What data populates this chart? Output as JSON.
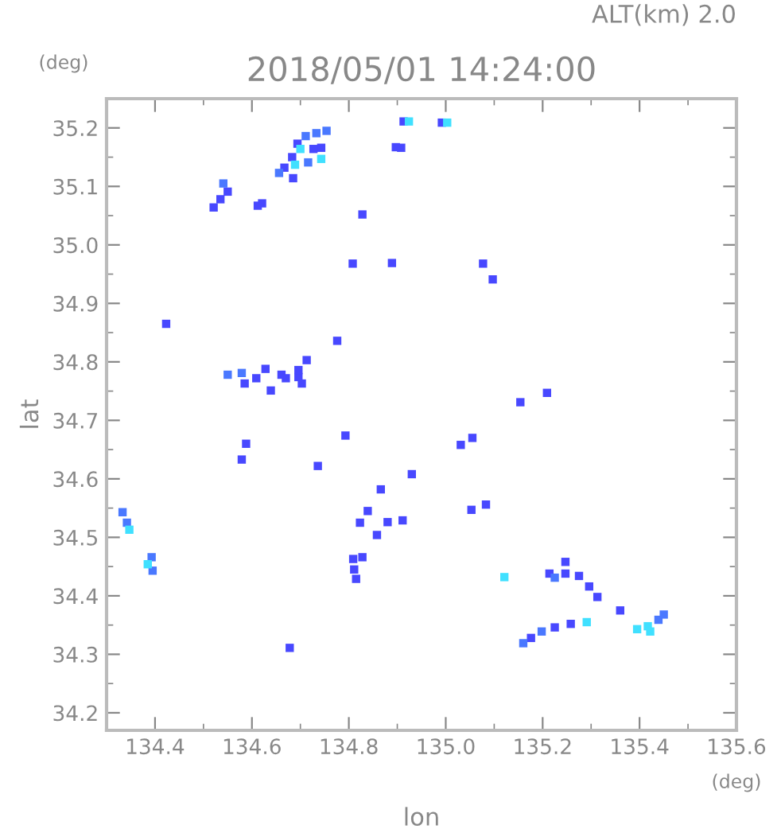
{
  "chart_data": {
    "type": "scatter",
    "title": "2018/05/01 14:24:00",
    "subtitle": "ALT(km) 2.0",
    "xlabel": "lon",
    "ylabel": "lat",
    "annotations": [
      "(deg)",
      "(deg)"
    ],
    "marker": "square",
    "grid": false,
    "legend": false,
    "xlim": [
      134.3,
      135.6
    ],
    "ylim": [
      34.17,
      35.25
    ],
    "xticks": [
      {
        "value": 134.3,
        "label": null
      },
      134.4,
      {
        "value": 134.5,
        "label": null
      },
      134.6,
      {
        "value": 134.7,
        "label": null
      },
      134.8,
      {
        "value": 134.9,
        "label": null
      },
      {
        "value": 135.0,
        "label": "135.0"
      },
      {
        "value": 135.1,
        "label": null
      },
      135.2,
      {
        "value": 135.3,
        "label": null
      },
      135.4,
      {
        "value": 135.5,
        "label": null
      },
      135.6
    ],
    "yticks": [
      34.2,
      {
        "value": 34.25,
        "label": null
      },
      34.3,
      {
        "value": 34.35,
        "label": null
      },
      34.4,
      {
        "value": 34.45,
        "label": null
      },
      34.5,
      {
        "value": 34.55,
        "label": null
      },
      34.6,
      {
        "value": 34.65,
        "label": null
      },
      34.7,
      {
        "value": 34.75,
        "label": null
      },
      34.8,
      {
        "value": 34.85,
        "label": null
      },
      34.9,
      {
        "value": 34.95,
        "label": null
      },
      {
        "value": 35.0,
        "label": "35.0"
      },
      {
        "value": 35.05,
        "label": null
      },
      35.1,
      {
        "value": 35.15,
        "label": null
      },
      35.2
    ],
    "series": [
      {
        "color": "#4848ff",
        "x": [
          134.913,
          134.992,
          134.694,
          134.683,
          134.667,
          134.743,
          134.727,
          134.685,
          134.908,
          134.897,
          134.55,
          134.535,
          134.521,
          134.612,
          134.621,
          134.828,
          134.808,
          134.889,
          134.423,
          134.776,
          134.713,
          134.609,
          134.628,
          134.661,
          134.67,
          134.696,
          134.696,
          134.703,
          134.585,
          134.639,
          135.077,
          135.097,
          135.209,
          134.588,
          134.579,
          134.793,
          134.736,
          134.93,
          134.866,
          134.839,
          134.823,
          134.88,
          134.911,
          134.858,
          134.809,
          134.828,
          134.811,
          134.815,
          134.678,
          135.154,
          135.031,
          135.055,
          135.053,
          135.083,
          135.214,
          135.247,
          135.247,
          135.275,
          135.296,
          135.313,
          135.36,
          135.176,
          135.225,
          135.258
        ],
        "values": [
          35.211,
          35.209,
          35.173,
          35.15,
          35.132,
          35.166,
          35.164,
          35.114,
          35.166,
          35.167,
          35.091,
          35.078,
          35.064,
          35.067,
          35.071,
          35.052,
          34.968,
          34.969,
          34.865,
          34.836,
          34.803,
          34.772,
          34.788,
          34.778,
          34.772,
          34.774,
          34.786,
          34.763,
          34.763,
          34.751,
          34.968,
          34.941,
          34.747,
          34.66,
          34.633,
          34.674,
          34.622,
          34.608,
          34.582,
          34.545,
          34.525,
          34.526,
          34.529,
          34.504,
          34.463,
          34.466,
          34.445,
          34.429,
          34.311,
          34.731,
          34.658,
          34.67,
          34.547,
          34.556,
          34.438,
          34.438,
          34.458,
          34.434,
          34.416,
          34.398,
          34.375,
          34.328,
          34.346,
          34.352
        ]
      },
      {
        "color": "#4a78ff",
        "x": [
          134.711,
          134.733,
          134.754,
          134.656,
          134.716,
          134.541,
          134.55,
          134.579,
          134.333,
          134.342,
          134.393,
          134.395,
          135.225,
          135.439,
          135.45,
          135.16,
          135.198
        ],
        "values": [
          35.186,
          35.191,
          35.195,
          35.123,
          35.141,
          35.105,
          34.778,
          34.781,
          34.543,
          34.525,
          34.466,
          34.443,
          34.431,
          34.359,
          34.368,
          34.319,
          34.339
        ]
      },
      {
        "color": "#40e0ff",
        "x": [
          134.924,
          135.003,
          134.7,
          134.689,
          134.743,
          134.347,
          134.385,
          135.121,
          135.395,
          135.417,
          135.422,
          135.291
        ],
        "values": [
          35.211,
          35.209,
          35.164,
          35.137,
          35.147,
          34.513,
          34.454,
          34.432,
          34.343,
          34.348,
          34.339,
          34.355
        ]
      }
    ]
  }
}
